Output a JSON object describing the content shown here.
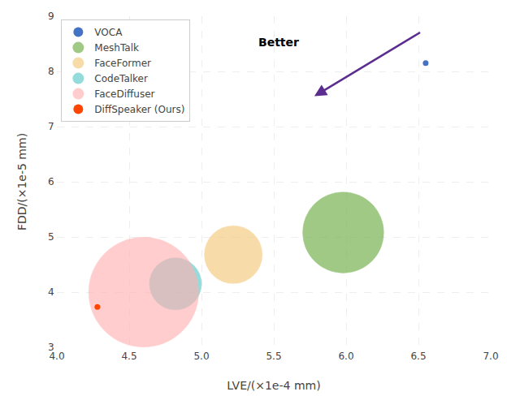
{
  "chart_data": {
    "type": "scatter",
    "xlabel": "LVE/(×1e-4 mm)",
    "ylabel": "FDD/(×1e-5 mm)",
    "xlim": [
      4.0,
      7.0
    ],
    "ylim": [
      3.0,
      9.0
    ],
    "xticks": [
      {
        "value": 4.0,
        "label": "4.0"
      },
      4.5,
      {
        "value": 5.0,
        "label": "5.0"
      },
      5.5,
      {
        "value": 6.0,
        "label": "6.0"
      },
      6.5,
      {
        "value": 7.0,
        "label": "7.0"
      }
    ],
    "yticks": [
      3,
      4,
      5,
      6,
      7,
      8,
      9
    ],
    "grid": true,
    "legend": "upper left",
    "series": [
      {
        "name": "VOCA",
        "color": "#4472C4",
        "marker": "dot",
        "x": [
          6.55
        ],
        "values": [
          8.15
        ]
      },
      {
        "name": "MeshTalk",
        "color": "#70AD47",
        "marker": "circle",
        "x": [
          5.98
        ],
        "values": [
          5.08
        ],
        "radius": [
          0.28
        ]
      },
      {
        "name": "FaceFormer",
        "color": "#F4C87A",
        "marker": "circle",
        "x": [
          5.22
        ],
        "values": [
          4.68
        ],
        "radius": [
          0.2
        ]
      },
      {
        "name": "CodeTalker",
        "color": "#5CC8C8",
        "marker": "circle",
        "x": [
          4.82
        ],
        "values": [
          4.15
        ],
        "radius": [
          0.18
        ]
      },
      {
        "name": "FaceDiffuser",
        "color": "#FFB3B3",
        "marker": "circle",
        "x": [
          4.6
        ],
        "values": [
          4.0
        ],
        "radius": [
          0.38
        ]
      },
      {
        "name": "DiffSpeaker (Ours)",
        "color": "#FF4500",
        "marker": "dot",
        "x": [
          4.28
        ],
        "values": [
          3.73
        ]
      }
    ],
    "arrow": {
      "x_start": 6.52,
      "y_start": 8.72,
      "x_end": 5.78,
      "y_end": 7.55,
      "color": "#5B2D8E"
    },
    "annotations": [
      {
        "text": "Better",
        "x": 5.38,
        "y": 8.38
      }
    ]
  }
}
